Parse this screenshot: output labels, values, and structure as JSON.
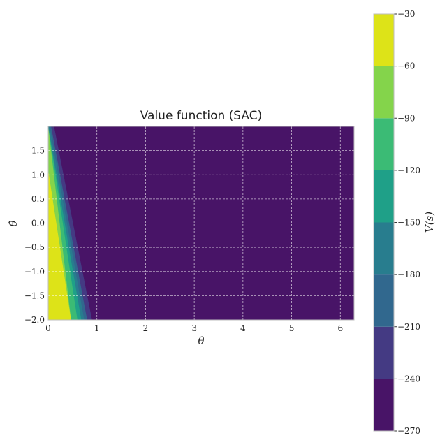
{
  "chart_data": {
    "type": "heatmap",
    "title": "Value function (SAC)",
    "xlabel": "θ",
    "ylabel": "θ̇",
    "xlim": [
      0,
      6.283
    ],
    "ylim": [
      -2.0,
      2.0
    ],
    "xticks": [
      "0",
      "1",
      "2",
      "3",
      "4",
      "5",
      "6"
    ],
    "yticks": [
      "−2.0",
      "−1.5",
      "−1.0",
      "−0.5",
      "0.0",
      "0.5",
      "1.0",
      "1.5"
    ],
    "grid": true,
    "colorbar": {
      "label": "V(s)",
      "levels": [
        -270,
        -240,
        -210,
        -180,
        -150,
        -120,
        -90,
        -60,
        -30
      ],
      "tick_labels": [
        "−270",
        "−240",
        "−210",
        "−180",
        "−150",
        "−120",
        "−90",
        "−60",
        "−30"
      ],
      "colors": [
        "#481467",
        "#443a83",
        "#31688e",
        "#287d8e",
        "#1fa088",
        "#3bbb75",
        "#84d44b",
        "#dde318"
      ]
    },
    "contour_bands": [
      {
        "range": [
          -270,
          -240
        ],
        "theta_at_dot_min": 1.0,
        "theta_at_dot_max": 0.2
      },
      {
        "range": [
          -240,
          -210
        ],
        "theta_at_dot_min": 0.9,
        "theta_at_dot_max": 0.12
      },
      {
        "range": [
          -210,
          -180
        ],
        "theta_at_dot_min": 0.8,
        "theta_at_dot_max": 0.06
      },
      {
        "range": [
          -180,
          -150
        ],
        "theta_at_dot_min": 0.74,
        "theta_at_dot_max": 0.03
      },
      {
        "range": [
          -150,
          -120
        ],
        "theta_at_dot_min": 0.68,
        "theta_at_dot_max": 0.0
      },
      {
        "range": [
          -120,
          -90
        ],
        "theta_at_dot_min": 0.6,
        "theta_at_dot_max": 0.0
      },
      {
        "range": [
          -90,
          -60
        ],
        "theta_at_dot_min": 0.47,
        "theta_at_dot_max": 0.0
      },
      {
        "range": [
          -60,
          -30
        ],
        "peak_theta": [
          0.0,
          0.47
        ],
        "peak_theta_dot": [
          -2.0,
          1.1
        ]
      }
    ]
  }
}
